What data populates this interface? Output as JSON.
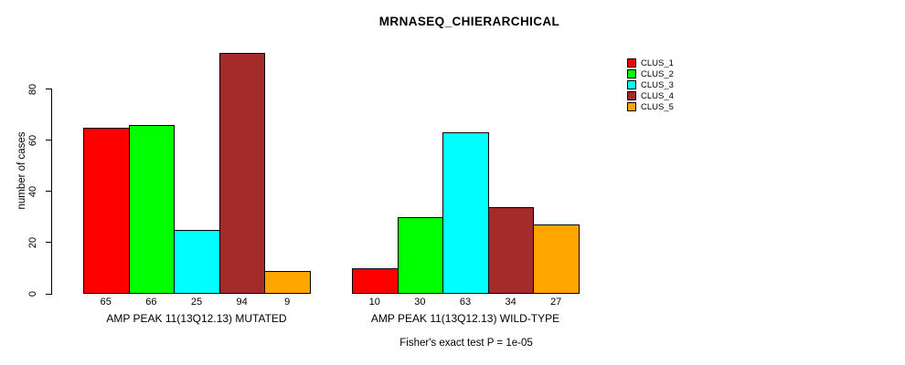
{
  "chart_data": {
    "type": "bar",
    "title": "MRNASEQ_CHIERARCHICAL",
    "ylabel": "number of cases",
    "ylim": [
      0,
      94
    ],
    "yticks": [
      0,
      20,
      40,
      60,
      80
    ],
    "grid": false,
    "legend": [
      "CLUS_1",
      "CLUS_2",
      "CLUS_3",
      "CLUS_4",
      "CLUS_5"
    ],
    "legend_position": "right",
    "series_colors": [
      "#ff0000",
      "#00ff00",
      "#00ffff",
      "#a52a2a",
      "#ffa500"
    ],
    "groups": [
      {
        "label": "AMP PEAK 11(13Q12.13) MUTATED",
        "values": [
          65,
          66,
          25,
          94,
          9
        ]
      },
      {
        "label": "AMP PEAK 11(13Q12.13) WILD-TYPE",
        "values": [
          10,
          30,
          63,
          34,
          27
        ]
      }
    ],
    "annotation": "Fisher's exact test P = 1e-05",
    "bar_border_color": "#000000",
    "text_color": "#000000",
    "background_color": "#ffffff"
  }
}
